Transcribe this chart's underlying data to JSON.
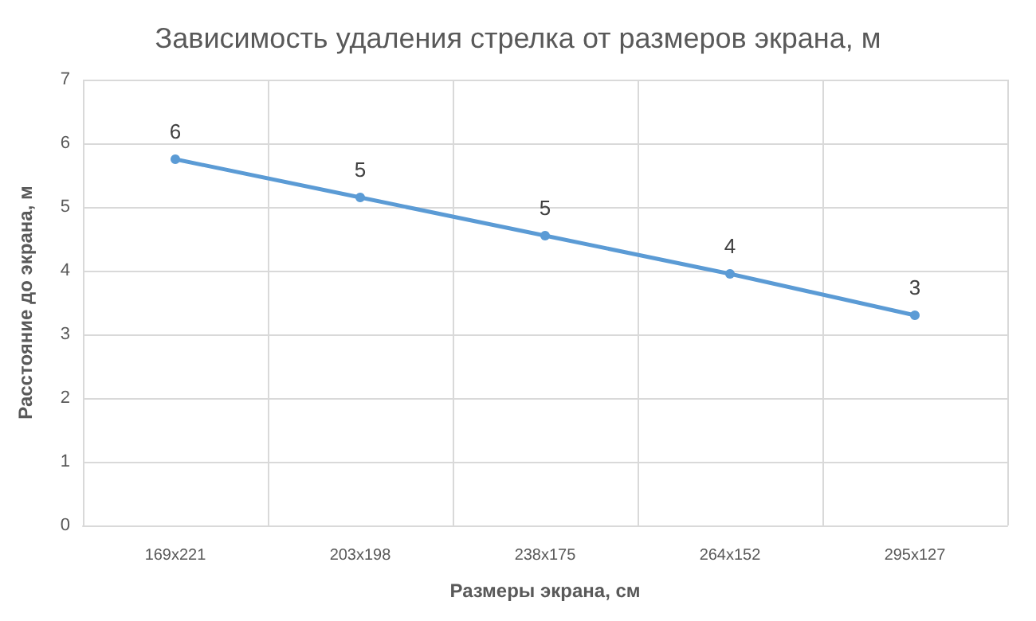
{
  "chart_data": {
    "type": "line",
    "title": "Зависимость удаления стрелка от размеров экрана, м",
    "xlabel": "Размеры экрана, см",
    "ylabel": "Расстояние до экрана, м",
    "categories": [
      "169x221",
      "203x198",
      "238x175",
      "264x152",
      "295x127"
    ],
    "series": [
      {
        "color": "#5b9bd5",
        "values": [
          5.75,
          5.15,
          4.55,
          3.95,
          3.3
        ],
        "value_labels": [
          "6",
          "5",
          "5",
          "4",
          "3"
        ]
      }
    ],
    "ylim": [
      0,
      7
    ],
    "yticks": [
      0,
      1,
      2,
      3,
      4,
      5,
      6,
      7
    ],
    "grid": true,
    "marker": "circle",
    "line_style": "solid"
  }
}
